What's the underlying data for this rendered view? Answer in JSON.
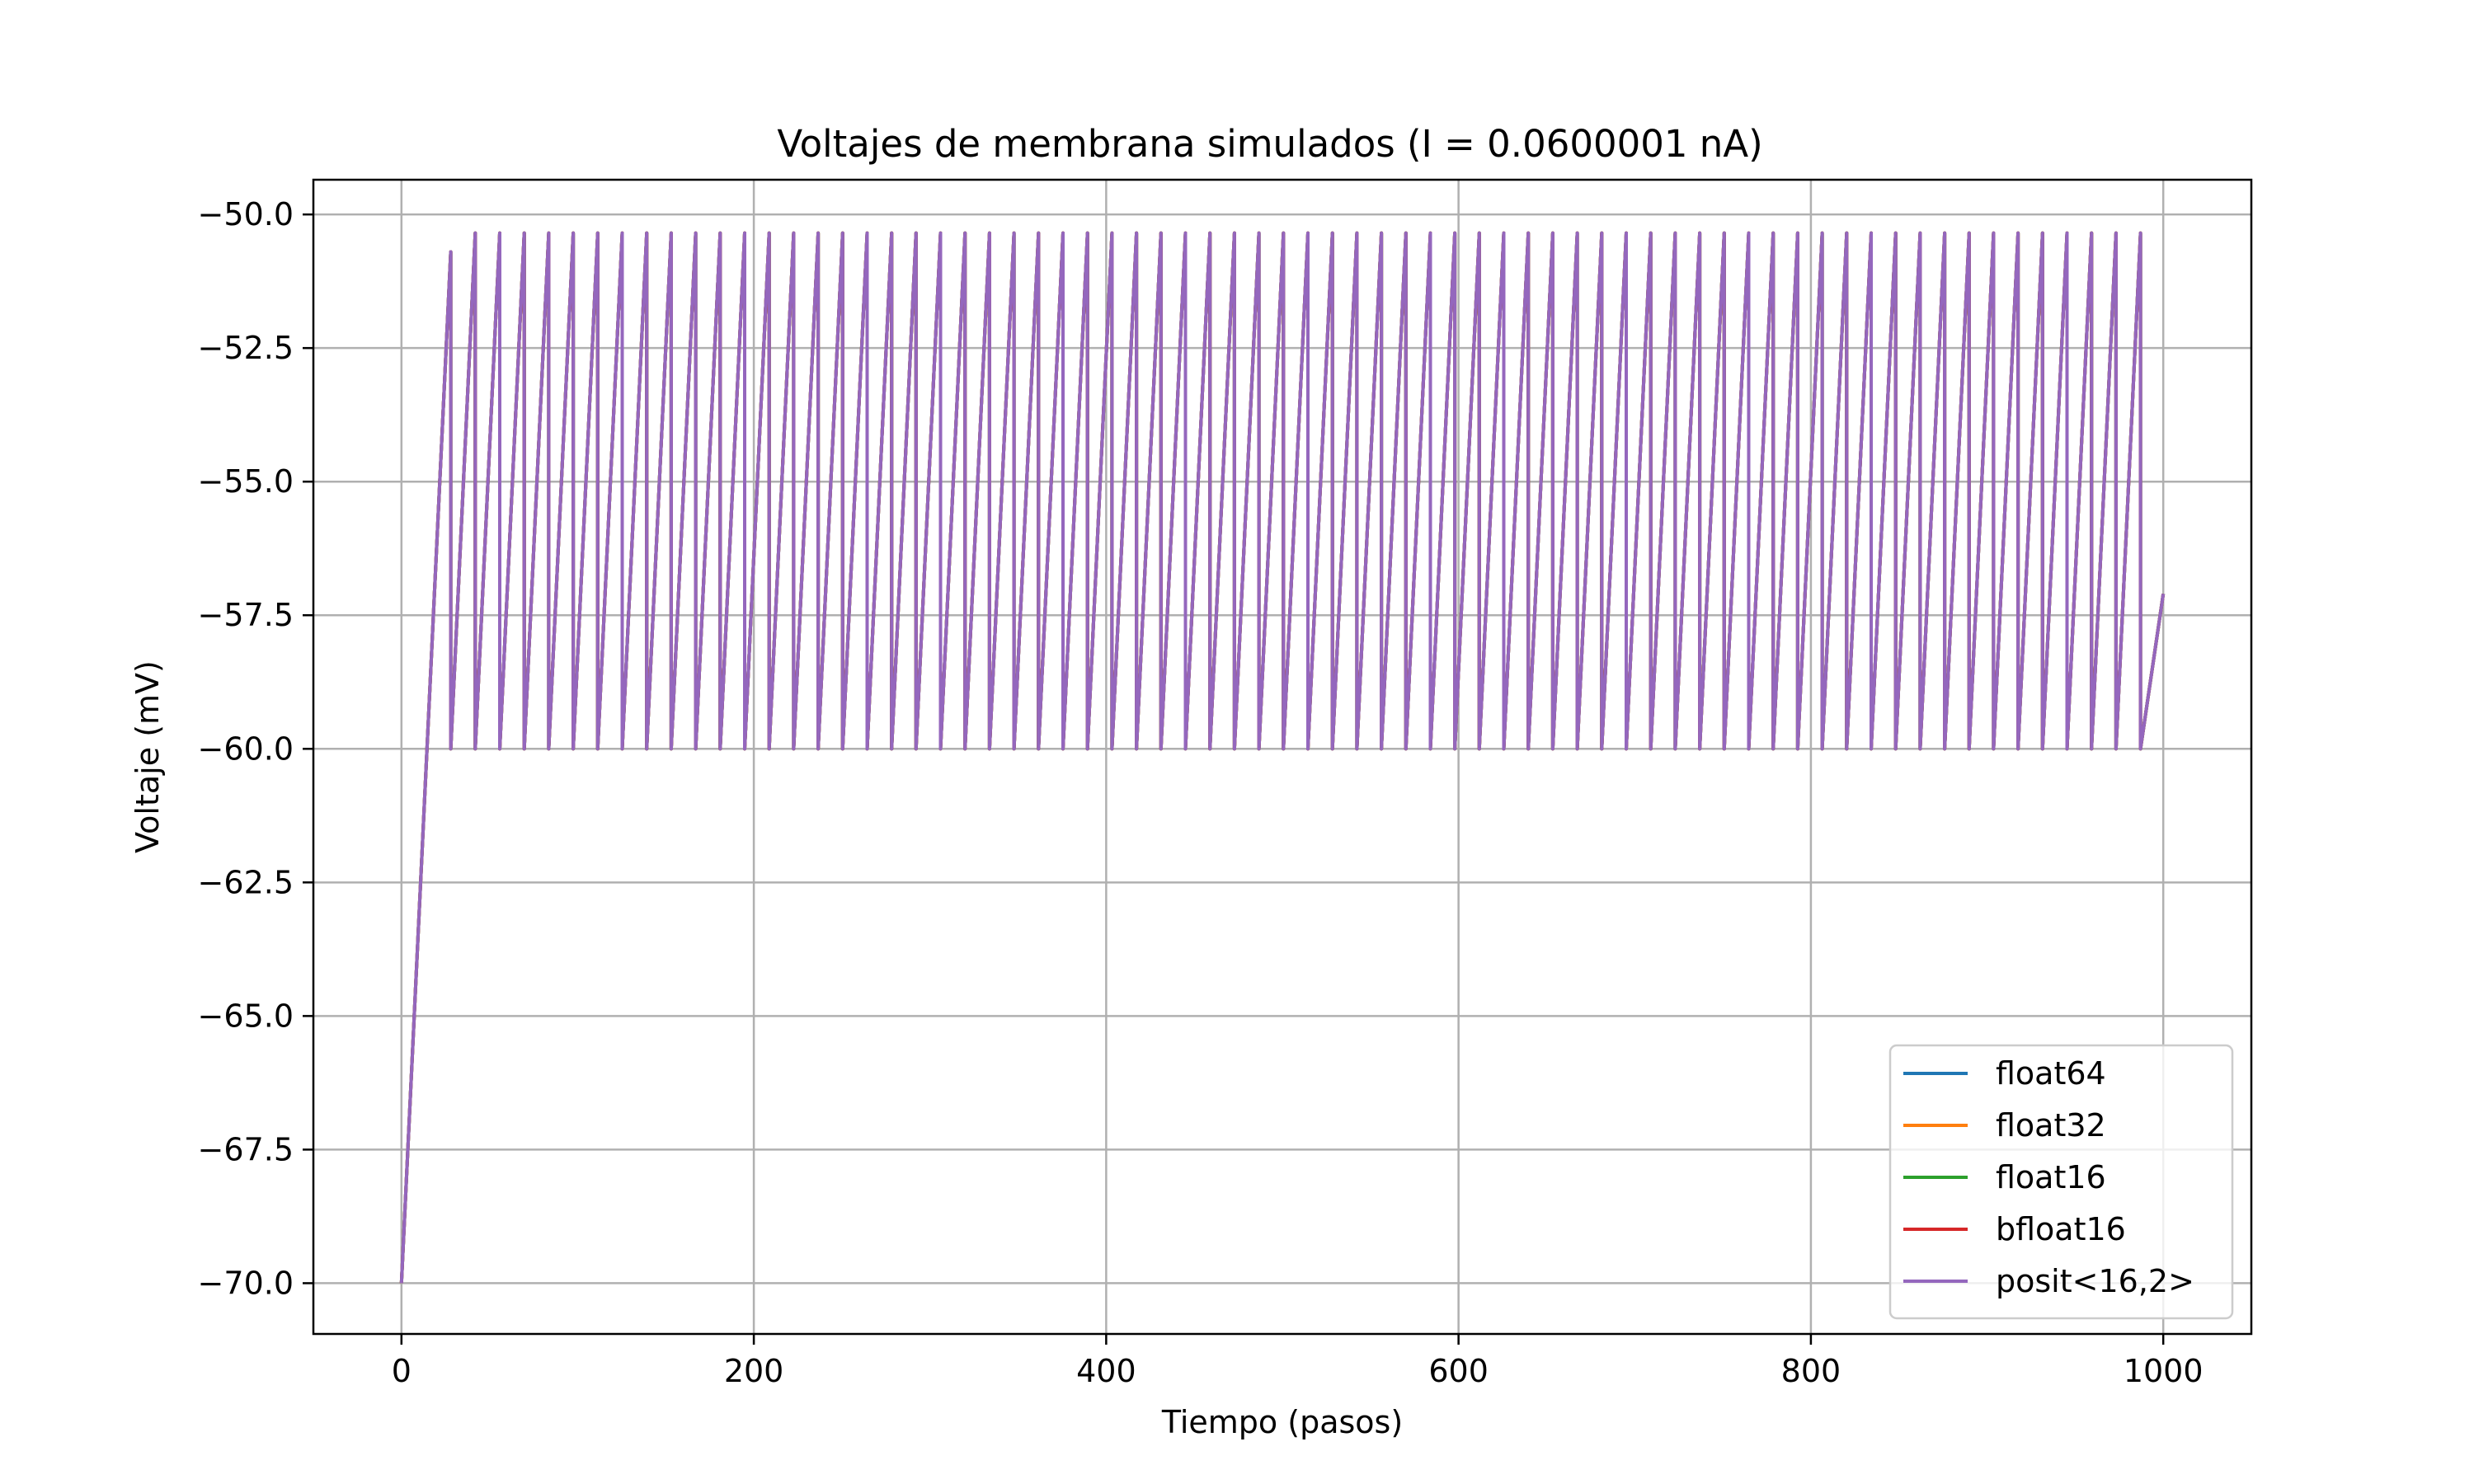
{
  "chart_data": {
    "type": "line",
    "title": "Voltajes de membrana simulados (I = 0.0600001 nA)",
    "xlabel": "Tiempo (pasos)",
    "ylabel": "Voltaje (mV)",
    "xlim": [
      -50,
      1050
    ],
    "ylim": [
      -70.95,
      -49.35
    ],
    "x_ticks": [
      0,
      200,
      400,
      600,
      800,
      1000
    ],
    "x_tick_labels": [
      "0",
      "200",
      "400",
      "600",
      "800",
      "1000"
    ],
    "y_ticks": [
      -70.0,
      -67.5,
      -65.0,
      -62.5,
      -60.0,
      -57.5,
      -55.0,
      -52.5,
      -50.0
    ],
    "y_tick_labels": [
      "−70.0",
      "−67.5",
      "−65.0",
      "−62.5",
      "−60.0",
      "−57.5",
      "−55.0",
      "−52.5",
      "−50.0"
    ],
    "grid": true,
    "legend_position": "lower-right",
    "waveform": {
      "start_step": 0,
      "start_voltage": -70.0,
      "first_peak_step": 28,
      "first_peak_voltage": -50.7,
      "reset_voltage": -60.0,
      "peak_voltage": -50.35,
      "period_steps": 13.9,
      "end_step": 1000,
      "end_voltage": -57.1
    },
    "series": [
      {
        "name": "float64",
        "color": "#1f77b4"
      },
      {
        "name": "float32",
        "color": "#ff7f0e"
      },
      {
        "name": "float16",
        "color": "#2ca02c"
      },
      {
        "name": "bfloat16",
        "color": "#d62728"
      },
      {
        "name": "posit<16,2>",
        "color": "#9467bd"
      }
    ]
  }
}
